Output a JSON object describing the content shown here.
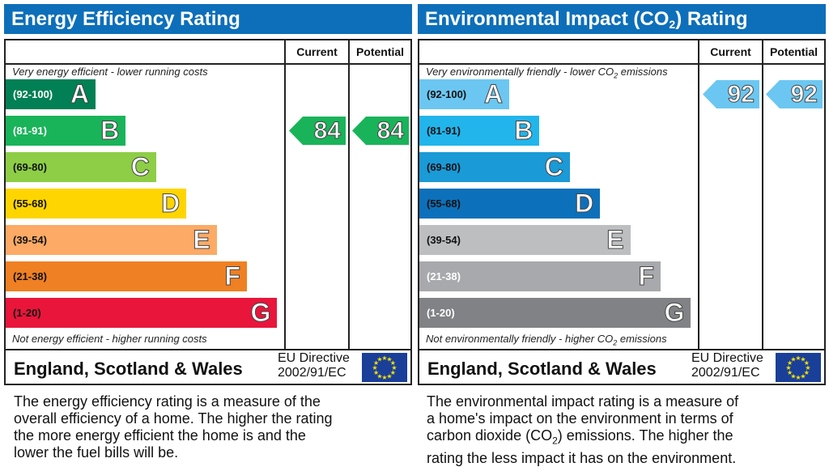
{
  "chart_data": [
    {
      "type": "bar",
      "title_parts": [
        "Energy Efficiency Rating"
      ],
      "column_headers": [
        "Current",
        "Potential"
      ],
      "top_note_parts": [
        "Very energy efficient - lower running costs"
      ],
      "bottom_note_parts": [
        "Not energy efficient - higher running costs"
      ],
      "bands": [
        {
          "letter": "A",
          "range": "(92-100)",
          "color": "#008054",
          "range_color": "#ffffff"
        },
        {
          "letter": "B",
          "range": "(81-91)",
          "color": "#19b459",
          "range_color": "#ffffff"
        },
        {
          "letter": "C",
          "range": "(69-80)",
          "color": "#8dce46",
          "range_color": "#111111"
        },
        {
          "letter": "D",
          "range": "(55-68)",
          "color": "#ffd500",
          "range_color": "#111111"
        },
        {
          "letter": "E",
          "range": "(39-54)",
          "color": "#fcaa65",
          "range_color": "#111111"
        },
        {
          "letter": "F",
          "range": "(21-38)",
          "color": "#ef8023",
          "range_color": "#111111"
        },
        {
          "letter": "G",
          "range": "(1-20)",
          "color": "#e9153b",
          "range_color": "#111111"
        }
      ],
      "current": {
        "value": 84,
        "band": "B",
        "color": "#19b459"
      },
      "potential": {
        "value": 84,
        "band": "B",
        "color": "#19b459"
      },
      "region": "England, Scotland & Wales",
      "directive": [
        "EU Directive",
        "2002/91/EC"
      ],
      "description_lines": [
        [
          "The energy efficiency rating is a measure of the"
        ],
        [
          "overall efficiency of a home. The higher the rating"
        ],
        [
          "the more energy efficient the home is and the"
        ],
        [
          "lower the fuel bills will be."
        ]
      ]
    },
    {
      "type": "bar",
      "title_parts": [
        "Environmental Impact (CO",
        "2",
        ") Rating"
      ],
      "column_headers": [
        "Current",
        "Potential"
      ],
      "top_note_parts": [
        "Very environmentally friendly - lower CO",
        "2",
        " emissions"
      ],
      "bottom_note_parts": [
        "Not environmentally friendly - higher CO",
        "2",
        " emissions"
      ],
      "bands": [
        {
          "letter": "A",
          "range": "(92-100)",
          "color": "#6bc7f1",
          "range_color": "#111111"
        },
        {
          "letter": "B",
          "range": "(81-91)",
          "color": "#22b5eb",
          "range_color": "#111111"
        },
        {
          "letter": "C",
          "range": "(69-80)",
          "color": "#1a9ad6",
          "range_color": "#111111"
        },
        {
          "letter": "D",
          "range": "(55-68)",
          "color": "#0d70ba",
          "range_color": "#111111"
        },
        {
          "letter": "E",
          "range": "(39-54)",
          "color": "#bcbec0",
          "range_color": "#111111"
        },
        {
          "letter": "F",
          "range": "(21-38)",
          "color": "#a7a9ac",
          "range_color": "#ffffff"
        },
        {
          "letter": "G",
          "range": "(1-20)",
          "color": "#808285",
          "range_color": "#ffffff"
        }
      ],
      "current": {
        "value": 92,
        "band": "A",
        "color": "#6bc7f1"
      },
      "potential": {
        "value": 92,
        "band": "A",
        "color": "#6bc7f1"
      },
      "region": "England, Scotland & Wales",
      "directive": [
        "EU Directive",
        "2002/91/EC"
      ],
      "description_lines": [
        [
          "The environmental impact rating is a measure of"
        ],
        [
          "a home's impact on the environment in terms of"
        ],
        [
          "carbon dioxide (CO",
          "2",
          ") emissions. The higher the"
        ],
        [
          "rating the less impact it has on the environment."
        ]
      ]
    }
  ],
  "colors": {
    "title_bar": "#0d6fba",
    "eu_flag": "#1a3f99",
    "eu_stars": "#f5e000"
  }
}
